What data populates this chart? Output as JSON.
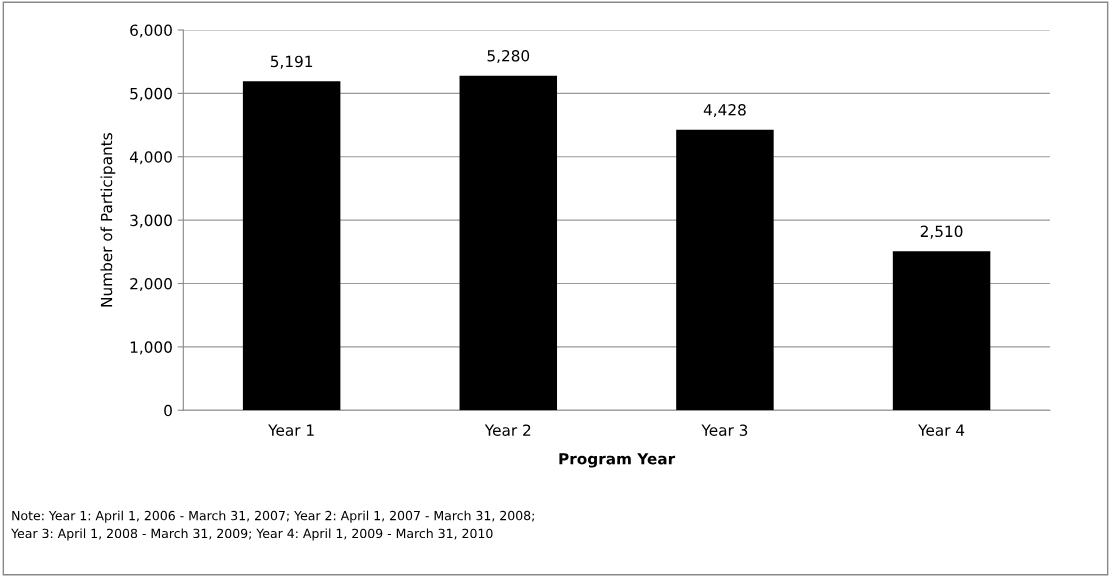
{
  "chart_data": {
    "type": "bar",
    "xlabel": "Program Year",
    "ylabel": "Number of Participants",
    "categories": [
      "Year 1",
      "Year 2",
      "Year 3",
      "Year 4"
    ],
    "values": [
      5191,
      5280,
      4428,
      2510
    ],
    "value_labels": [
      "5,191",
      "5,280",
      "4,428",
      "2,510"
    ],
    "color": "#000000",
    "ylim": [
      0,
      6000
    ],
    "yticks": [
      {
        "value": 0,
        "label": "0"
      },
      {
        "value": 1000,
        "label": "1,000"
      },
      {
        "value": 2000,
        "label": "2,000"
      },
      {
        "value": 3000,
        "label": "3,000"
      },
      {
        "value": 4000,
        "label": "4,000"
      },
      {
        "value": 5000,
        "label": "5,000"
      },
      {
        "value": 6000,
        "label": "6,000"
      }
    ],
    "grid": "y",
    "annotations": [
      "Note: Year 1: April 1, 2006 - March 31, 2007; Year 2: April 1, 2007 - March 31, 2008;\nYear 3: April 1, 2008 - March 31, 2009; Year 4: April 1, 2009 - March 31, 2010"
    ]
  }
}
